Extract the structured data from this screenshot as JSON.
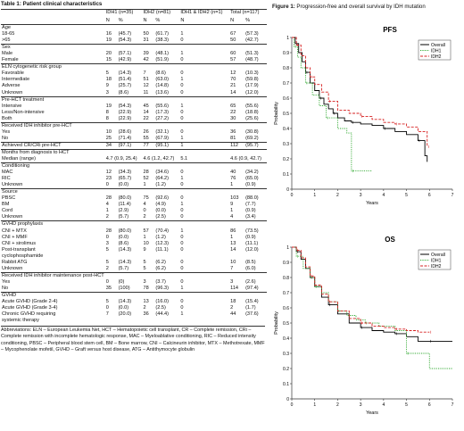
{
  "table": {
    "caption": "Table 1: Patient clinical characteristics",
    "header": {
      "groups": [
        "",
        "IDH1 (n=35)",
        "IDH2 (n=81)",
        "IDH1 & IDH2 (n=1)",
        "Total (n=117)"
      ],
      "sub": [
        "N",
        "%",
        "N",
        "%",
        "N",
        "N",
        "%"
      ]
    },
    "rows": [
      {
        "label": "Age",
        "sec": true
      },
      {
        "label": "18-65",
        "indent": true,
        "v": [
          "16",
          "(45.7)",
          "50",
          "(61.7)",
          "1",
          "67",
          "(57.3)"
        ]
      },
      {
        "label": ">65",
        "indent": true,
        "v": [
          "19",
          "(54.3)",
          "31",
          "(38.3)",
          "0",
          "50",
          "(42.7)"
        ]
      },
      {
        "label": "Sex",
        "sec": true
      },
      {
        "label": "Male",
        "indent": true,
        "v": [
          "20",
          "(57.1)",
          "39",
          "(48.1)",
          "1",
          "60",
          "(51.3)"
        ]
      },
      {
        "label": "Female",
        "indent": true,
        "v": [
          "15",
          "(42.9)",
          "42",
          "(51.9)",
          "0",
          "57",
          "(48.7)"
        ]
      },
      {
        "label": "ELN cytogenetic risk group",
        "sec": true
      },
      {
        "label": "Favorable",
        "indent": true,
        "v": [
          "5",
          "(14.3)",
          "7",
          "(8.6)",
          "0",
          "12",
          "(10.3)"
        ]
      },
      {
        "label": "Intermediate",
        "indent": true,
        "v": [
          "18",
          "(51.4)",
          "51",
          "(63.0)",
          "1",
          "70",
          "(59.8)"
        ]
      },
      {
        "label": "Adverse",
        "indent": true,
        "v": [
          "9",
          "(25.7)",
          "12",
          "(14.8)",
          "0",
          "21",
          "(17.9)"
        ]
      },
      {
        "label": "Unknown",
        "indent": true,
        "v": [
          "3",
          "(8.6)",
          "11",
          "(13.6)",
          "0",
          "14",
          "(12.0)"
        ]
      },
      {
        "label": "Pre-HCT treatment",
        "sec": true
      },
      {
        "label": "Intensive",
        "indent": true,
        "v": [
          "19",
          "(54.3)",
          "45",
          "(55.6)",
          "1",
          "65",
          "(55.6)"
        ]
      },
      {
        "label": "Less/Non-intensive",
        "indent": true,
        "v": [
          "8",
          "(22.9)",
          "14",
          "(17.3)",
          "0",
          "22",
          "(18.8)"
        ]
      },
      {
        "label": "Both",
        "indent": true,
        "v": [
          "8",
          "(22.9)",
          "22",
          "(27.2)",
          "0",
          "30",
          "(25.6)"
        ]
      },
      {
        "label": "Received IDH inhibitor pre-HCT",
        "sec": true
      },
      {
        "label": "Yes",
        "indent": true,
        "v": [
          "10",
          "(28.6)",
          "26",
          "(32.1)",
          "0",
          "36",
          "(30.8)"
        ]
      },
      {
        "label": "No",
        "indent": true,
        "v": [
          "25",
          "(71.4)",
          "55",
          "(67.9)",
          "1",
          "81",
          "(69.2)"
        ]
      },
      {
        "label": "Achieved CR/CRi pre-HCT",
        "sec": true,
        "v": [
          "34",
          "(97.1)",
          "77",
          "(95.1)",
          "1",
          "112",
          "(95.7)"
        ]
      },
      {
        "label": "Months from diagnosis to HCT",
        "sec": true
      },
      {
        "label": "Median (range)",
        "indent": true,
        "med": true,
        "v": [
          "4.7 (0.9, 25.4)",
          "4.6 (1.2, 42.7)",
          "5.1",
          "4.6 (0.9, 42.7)"
        ]
      },
      {
        "label": "Conditioning",
        "sec": true
      },
      {
        "label": "MAC",
        "indent": true,
        "v": [
          "12",
          "(34.3)",
          "28",
          "(34.6)",
          "0",
          "40",
          "(34.2)"
        ]
      },
      {
        "label": "RIC",
        "indent": true,
        "v": [
          "23",
          "(65.7)",
          "52",
          "(64.2)",
          "1",
          "76",
          "(65.0)"
        ]
      },
      {
        "label": "Unknown",
        "indent": true,
        "v": [
          "0",
          "(0.0)",
          "1",
          "(1.2)",
          "0",
          "1",
          "(0.9)"
        ]
      },
      {
        "label": "Source",
        "sec": true
      },
      {
        "label": "PBSC",
        "indent": true,
        "v": [
          "28",
          "(80.0)",
          "75",
          "(92.6)",
          "0",
          "103",
          "(88.0)"
        ]
      },
      {
        "label": "BM",
        "indent": true,
        "v": [
          "4",
          "(11.4)",
          "4",
          "(4.9)",
          "1",
          "9",
          "(7.7)"
        ]
      },
      {
        "label": "Cord",
        "indent": true,
        "v": [
          "1",
          "(2.9)",
          "0",
          "(0.0)",
          "0",
          "1",
          "(0.9)"
        ]
      },
      {
        "label": "Unknown",
        "indent": true,
        "v": [
          "2",
          "(5.7)",
          "2",
          "(2.5)",
          "0",
          "4",
          "(3.4)"
        ]
      },
      {
        "label": "GVHD prophylaxis",
        "sec": true
      },
      {
        "label": "CNI + MTX",
        "indent": true,
        "v": [
          "28",
          "(80.0)",
          "57",
          "(70.4)",
          "1",
          "86",
          "(73.5)"
        ]
      },
      {
        "label": "CNI + MMF",
        "indent": true,
        "v": [
          "0",
          "(0.0)",
          "1",
          "(1.2)",
          "0",
          "1",
          "(0.9)"
        ]
      },
      {
        "label": "CNI + sirolimus",
        "indent": true,
        "v": [
          "3",
          "(8.6)",
          "10",
          "(12.3)",
          "0",
          "13",
          "(11.1)"
        ]
      },
      {
        "label": "Post-transplant",
        "indent": true,
        "v": [
          "5",
          "(14.3)",
          "9",
          "(11.1)",
          "0",
          "14",
          "(12.0)"
        ]
      },
      {
        "label": "cyclophosphamide",
        "indent": true
      },
      {
        "label": "Rabbit ATG",
        "indent": true,
        "v": [
          "5",
          "(14.3)",
          "5",
          "(6.2)",
          "0",
          "10",
          "(8.5)"
        ]
      },
      {
        "label": "Unknown",
        "indent": true,
        "v": [
          "2",
          "(5.7)",
          "5",
          "(6.2)",
          "0",
          "7",
          "(6.0)"
        ]
      },
      {
        "label": "Received IDH inhibitor maintenance post-HCT",
        "sec": true
      },
      {
        "label": "Yes",
        "indent": true,
        "v": [
          "0",
          "(0)",
          "3",
          "(3.7)",
          "0",
          "3",
          "(2.6)"
        ]
      },
      {
        "label": "No",
        "indent": true,
        "v": [
          "35",
          "(100)",
          "78",
          "(96.3)",
          "1",
          "114",
          "(97.4)"
        ]
      },
      {
        "label": "GVHD",
        "sec": true
      },
      {
        "label": "Acute GVHD (Grade 2-4)",
        "indent": true,
        "v": [
          "5",
          "(14.3)",
          "13",
          "(16.0)",
          "0",
          "18",
          "(15.4)"
        ]
      },
      {
        "label": "Acute GVHD (Grade 3-4)",
        "indent": true,
        "v": [
          "0",
          "(0.0)",
          "2",
          "(2.5)",
          "0",
          "2",
          "(1.7)"
        ]
      },
      {
        "label": "Chronic GVHD requiring",
        "indent": true,
        "v": [
          "7",
          "(20.0)",
          "36",
          "(44.4)",
          "1",
          "44",
          "(37.6)"
        ]
      },
      {
        "label": "systemic therapy",
        "indent": true
      }
    ],
    "abbreviations": "Abbreviations: ELN – European Leukemia Net, HCT – Hematopoietic cell transplant, CR – Complete remission, CRi – Complete remission with incomplete hematologic response, MAC – Myeloablative conditioning, RIC – Reduced intensity conditioning, PBSC – Peripheral blood stem cell, BM – Bone marrow, CNI – Calcineurin inhibitor, MTX – Methotrexate, MMF – Mycophenolate mofetil, GVHD – Graft versus host disease, ATG – Antithymocyte globulin"
  },
  "figure": {
    "title_bold": "Figure 1:",
    "title_rest": " Progression-free and overall survival by IDH mutation"
  },
  "colors": {
    "overall": "#000000",
    "idh1": "#33aa33",
    "idh2": "#d62020"
  },
  "chart_data": [
    {
      "type": "line",
      "title": "PFS",
      "xlabel": "Years",
      "ylabel": "Probability",
      "xlim": [
        0,
        7
      ],
      "ylim": [
        0,
        1
      ],
      "xticks": [
        0,
        1,
        2,
        3,
        4,
        5,
        6,
        7
      ],
      "yticks": [
        0,
        0.1,
        0.2,
        0.3,
        0.4,
        0.5,
        0.6,
        0.7,
        0.8,
        0.9,
        1
      ],
      "legend_position": "top-right",
      "series": [
        {
          "name": "Overall",
          "style": "solid",
          "color": "#000000",
          "x": [
            0,
            0.15,
            0.3,
            0.45,
            0.6,
            0.8,
            1.0,
            1.2,
            1.4,
            1.6,
            1.8,
            2.0,
            2.3,
            2.6,
            3.0,
            3.5,
            4.0,
            4.5,
            5.0,
            5.5,
            5.8,
            5.9
          ],
          "y": [
            1,
            0.96,
            0.9,
            0.84,
            0.77,
            0.7,
            0.65,
            0.6,
            0.56,
            0.53,
            0.5,
            0.47,
            0.45,
            0.44,
            0.43,
            0.42,
            0.4,
            0.38,
            0.36,
            0.32,
            0.22,
            0.18
          ]
        },
        {
          "name": "IDH1",
          "style": "dotted",
          "color": "#33aa33",
          "x": [
            0,
            0.1,
            0.25,
            0.4,
            0.6,
            0.9,
            1.2,
            1.5,
            2.0,
            2.4,
            2.6,
            3.5
          ],
          "y": [
            1,
            0.94,
            0.87,
            0.8,
            0.7,
            0.62,
            0.55,
            0.47,
            0.4,
            0.37,
            0.12,
            0.12
          ]
        },
        {
          "name": "IDH2",
          "style": "dashed",
          "color": "#d62020",
          "x": [
            0,
            0.2,
            0.4,
            0.6,
            0.8,
            1.0,
            1.3,
            1.6,
            2.0,
            2.5,
            3.0,
            3.5,
            4.0,
            4.5,
            5.0,
            5.5,
            5.9
          ],
          "y": [
            1,
            0.95,
            0.88,
            0.8,
            0.74,
            0.69,
            0.64,
            0.58,
            0.52,
            0.5,
            0.48,
            0.46,
            0.44,
            0.43,
            0.41,
            0.38,
            0.28
          ]
        }
      ]
    },
    {
      "type": "line",
      "title": "OS",
      "xlabel": "Years",
      "ylabel": "Probability",
      "xlim": [
        0,
        7
      ],
      "ylim": [
        0,
        1
      ],
      "xticks": [
        0,
        1,
        2,
        3,
        4,
        5,
        6,
        7
      ],
      "yticks": [
        0,
        0.1,
        0.2,
        0.3,
        0.4,
        0.5,
        0.6,
        0.7,
        0.8,
        0.9,
        1
      ],
      "legend_position": "top-right",
      "series": [
        {
          "name": "Overall",
          "style": "solid",
          "color": "#000000",
          "x": [
            0,
            0.2,
            0.4,
            0.6,
            0.8,
            1.0,
            1.3,
            1.6,
            2.0,
            2.5,
            3.0,
            3.5,
            4.0,
            4.5,
            5.0,
            5.5,
            6.0,
            7.0
          ],
          "y": [
            1,
            0.97,
            0.92,
            0.86,
            0.8,
            0.74,
            0.67,
            0.62,
            0.56,
            0.5,
            0.47,
            0.45,
            0.44,
            0.43,
            0.41,
            0.38,
            0.38,
            0.38
          ]
        },
        {
          "name": "IDH1",
          "style": "dotted",
          "color": "#33aa33",
          "x": [
            0,
            0.2,
            0.5,
            0.8,
            1.0,
            1.3,
            1.6,
            2.0,
            2.4,
            2.8,
            3.2,
            3.8,
            4.5,
            5.0,
            6.0,
            7.0
          ],
          "y": [
            1,
            0.94,
            0.86,
            0.8,
            0.74,
            0.7,
            0.64,
            0.58,
            0.55,
            0.52,
            0.5,
            0.48,
            0.45,
            0.3,
            0.2,
            0.2
          ]
        },
        {
          "name": "IDH2",
          "style": "dashed",
          "color": "#d62020",
          "x": [
            0,
            0.2,
            0.4,
            0.6,
            0.8,
            1.0,
            1.3,
            1.6,
            2.0,
            2.5,
            3.0,
            3.5,
            4.0,
            4.5,
            5.0,
            5.5,
            6.0
          ],
          "y": [
            1,
            0.98,
            0.93,
            0.87,
            0.81,
            0.75,
            0.69,
            0.64,
            0.58,
            0.53,
            0.5,
            0.48,
            0.47,
            0.46,
            0.45,
            0.44,
            0.44
          ]
        }
      ]
    }
  ]
}
